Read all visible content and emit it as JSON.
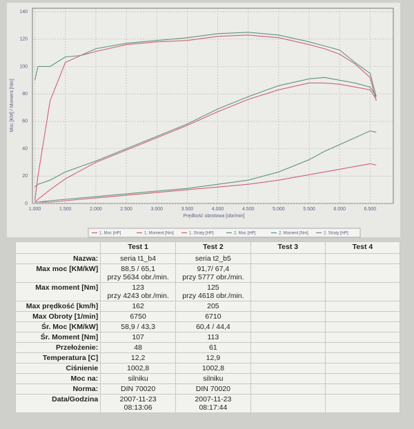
{
  "chart_data": {
    "type": "line",
    "xlabel": "Prędkość obrotowa [obr/min]",
    "ylabel": "Moc [KM] / Moment [Nm]",
    "x": [
      1000,
      1050,
      1250,
      1500,
      1750,
      2000,
      2500,
      3000,
      3500,
      4000,
      4500,
      5000,
      5500,
      5750,
      6000,
      6250,
      6500,
      6600
    ],
    "xlim": [
      960,
      6880
    ],
    "xticks": [
      {
        "value": 1000,
        "label": "1.000"
      },
      {
        "value": 1500,
        "label": "1.500"
      },
      {
        "value": 2000,
        "label": "2.000"
      },
      {
        "value": 2500,
        "label": "2.500"
      },
      {
        "value": 3000,
        "label": "3.000"
      },
      {
        "value": 3500,
        "label": "3.500"
      },
      {
        "value": 4000,
        "label": "4.000"
      },
      {
        "value": 4500,
        "label": "4.500"
      },
      {
        "value": 5000,
        "label": "5.000"
      },
      {
        "value": 5500,
        "label": "5.500"
      },
      {
        "value": 6000,
        "label": "6.000"
      },
      {
        "value": 6500,
        "label": "6.500"
      }
    ],
    "ylim": [
      0,
      140
    ],
    "yticks": [
      0,
      20,
      40,
      60,
      80,
      100,
      120,
      140
    ],
    "grid": true,
    "series": [
      {
        "name": "1. Moc [HP]",
        "color": "#d06070",
        "values": [
          1,
          3,
          10,
          18,
          24,
          30,
          39,
          48,
          57,
          67,
          76,
          83,
          88,
          88,
          87,
          85,
          83,
          76
        ]
      },
      {
        "name": "1. Moment [Nm]",
        "color": "#d06070",
        "values": [
          2,
          20,
          75,
          103,
          108,
          111,
          116,
          118,
          119,
          122,
          123,
          121,
          116,
          113,
          109,
          102,
          92,
          75
        ]
      },
      {
        "name": "1. Straty [HP]",
        "color": "#d06070",
        "values": [
          1,
          1,
          1,
          2,
          3,
          4,
          6,
          8,
          10,
          12,
          14,
          17,
          21,
          23,
          25,
          27,
          29,
          28
        ]
      },
      {
        "name": "2. Moc [HP]",
        "color": "#5f9478",
        "values": [
          12,
          14,
          17,
          23,
          27,
          31,
          40,
          49,
          58,
          69,
          78,
          86,
          91,
          92,
          90,
          88,
          85,
          78
        ]
      },
      {
        "name": "2. Moment [Nm]",
        "color": "#5f9478",
        "values": [
          90,
          100,
          100,
          107,
          108,
          113,
          117,
          119,
          121,
          124,
          125,
          123,
          118,
          115,
          112,
          103,
          95,
          78
        ]
      },
      {
        "name": "2. Straty [HP]",
        "color": "#5f9478",
        "values": [
          1,
          1,
          2,
          3,
          4,
          5,
          7,
          9,
          11,
          14,
          17,
          23,
          32,
          38,
          43,
          48,
          53,
          52
        ]
      }
    ]
  },
  "table": {
    "headers": [
      "Test 1",
      "Test 2",
      "Test 3",
      "Test 4"
    ],
    "rows": [
      {
        "label": "Nazwa:",
        "cells": [
          [
            "seria t1_b4"
          ],
          [
            "seria t2_b5"
          ]
        ]
      },
      {
        "label": "Max moc [KM/kW]",
        "cells": [
          [
            "88,5 / 65,1",
            "przy 5634 obr./min."
          ],
          [
            "91,7/ 67,4",
            "przy 5777 obr./min."
          ]
        ]
      },
      {
        "label": "Max moment [Nm]",
        "cells": [
          [
            "123",
            "przy 4243 obr./min."
          ],
          [
            "125",
            "przy 4618 obr./min."
          ]
        ]
      },
      {
        "label": "Max prędkość [km/h]",
        "cells": [
          [
            "162"
          ],
          [
            "205"
          ]
        ]
      },
      {
        "label": "Max Obroty [1/min]",
        "cells": [
          [
            "6750"
          ],
          [
            "6710"
          ]
        ]
      },
      {
        "label": "Śr. Moc [KM/kW]",
        "cells": [
          [
            "58,9 / 43,3"
          ],
          [
            "60,4 / 44,4"
          ]
        ]
      },
      {
        "label": "Śr. Moment [Nm]",
        "cells": [
          [
            "107"
          ],
          [
            "113"
          ]
        ]
      },
      {
        "label": "Przełożenie:",
        "cells": [
          [
            "48"
          ],
          [
            "61"
          ]
        ]
      },
      {
        "label": "Temperatura [C]",
        "cells": [
          [
            "12,2"
          ],
          [
            "12,9"
          ]
        ]
      },
      {
        "label": "Ciśnienie",
        "cells": [
          [
            "1002,8"
          ],
          [
            "1002,8"
          ]
        ]
      },
      {
        "label": "Moc na:",
        "cells": [
          [
            "silniku"
          ],
          [
            "silniku"
          ]
        ]
      },
      {
        "label": "Norma:",
        "cells": [
          [
            "DIN 70020"
          ],
          [
            "DIN 70020"
          ]
        ]
      },
      {
        "label": "Data/Godzina",
        "cells": [
          [
            "2007-11-23",
            "08:13:06"
          ],
          [
            "2007-11-23",
            "08:17:44"
          ]
        ]
      }
    ]
  }
}
